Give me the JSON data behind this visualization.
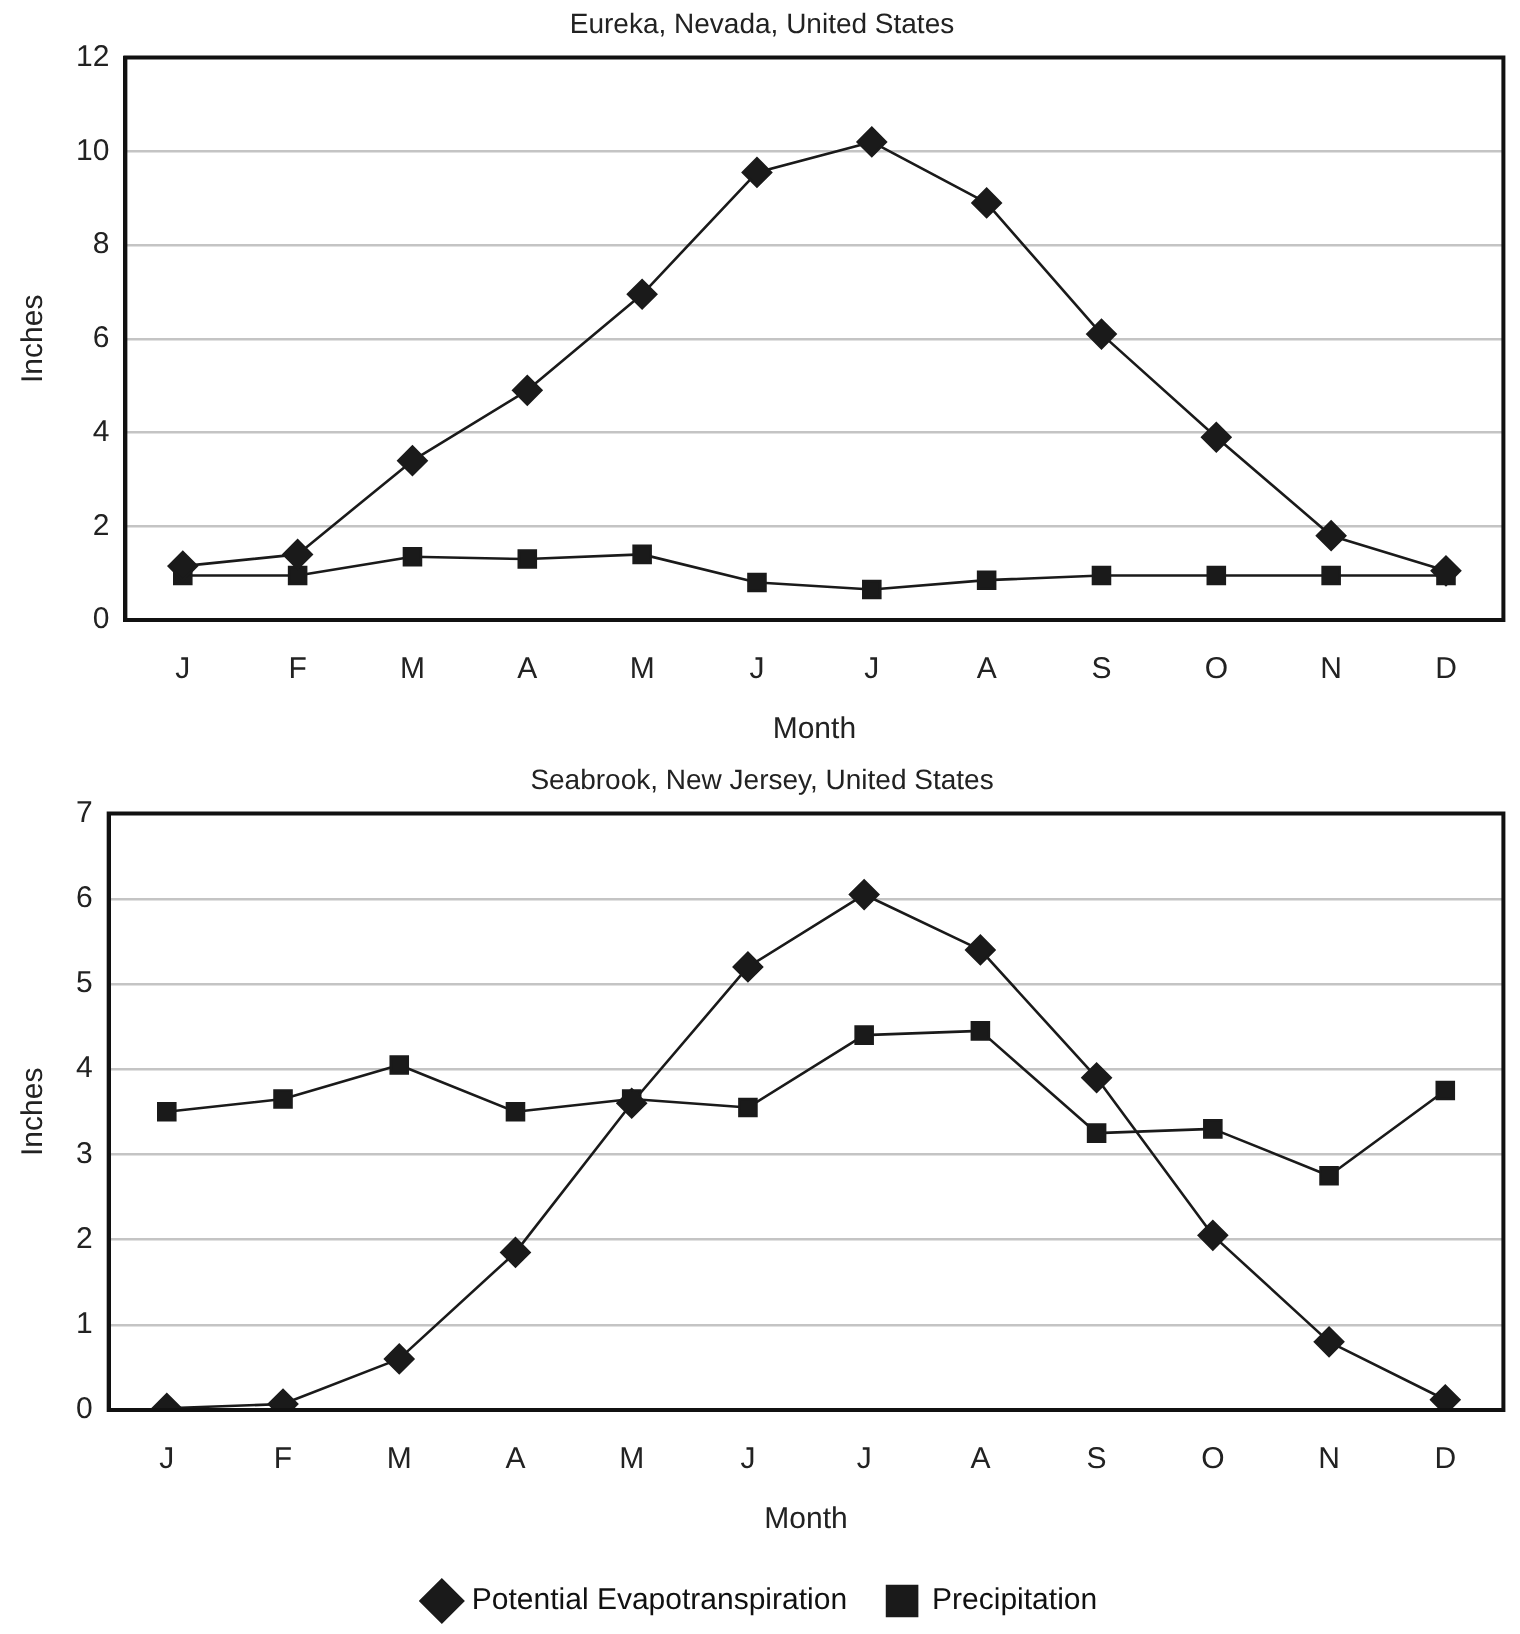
{
  "chart_data": [
    {
      "type": "line",
      "title": "Eureka, Nevada, United States",
      "xlabel": "Month",
      "ylabel": "Inches",
      "categories": [
        "J",
        "F",
        "M",
        "A",
        "M",
        "J",
        "J",
        "A",
        "S",
        "O",
        "N",
        "D"
      ],
      "ylim": [
        0,
        12
      ],
      "yticks": [
        0,
        2,
        4,
        6,
        8,
        10,
        12
      ],
      "grid": "y",
      "legend": false,
      "series": [
        {
          "color": "#1a1a1a",
          "marker": "diamond",
          "values": [
            1.15,
            1.4,
            3.4,
            4.9,
            6.95,
            9.55,
            10.2,
            8.9,
            6.1,
            3.9,
            1.8,
            1.05
          ]
        },
        {
          "color": "#1a1a1a",
          "marker": "square",
          "values": [
            0.95,
            0.95,
            1.35,
            1.3,
            1.4,
            0.8,
            0.65,
            0.85,
            0.95,
            0.95,
            0.95,
            0.95
          ]
        }
      ]
    },
    {
      "type": "line",
      "title": "Seabrook, New Jersey, United States",
      "xlabel": "Month",
      "ylabel": "Inches",
      "categories": [
        "J",
        "F",
        "M",
        "A",
        "M",
        "J",
        "J",
        "A",
        "S",
        "O",
        "N",
        "D"
      ],
      "ylim": [
        0,
        7
      ],
      "yticks": [
        0,
        1,
        2,
        3,
        4,
        5,
        6,
        7
      ],
      "grid": "y",
      "legend": "bottom",
      "series": [
        {
          "name": "Potential Evapotranspiration",
          "color": "#1a1a1a",
          "marker": "diamond",
          "values": [
            0.02,
            0.07,
            0.6,
            1.85,
            3.6,
            5.2,
            6.05,
            5.4,
            3.9,
            2.05,
            0.8,
            0.12
          ]
        },
        {
          "name": "Precipitation",
          "color": "#1a1a1a",
          "marker": "square",
          "values": [
            3.5,
            3.65,
            4.05,
            3.5,
            3.65,
            3.55,
            4.4,
            4.45,
            3.25,
            3.3,
            2.75,
            3.75
          ]
        }
      ]
    }
  ]
}
